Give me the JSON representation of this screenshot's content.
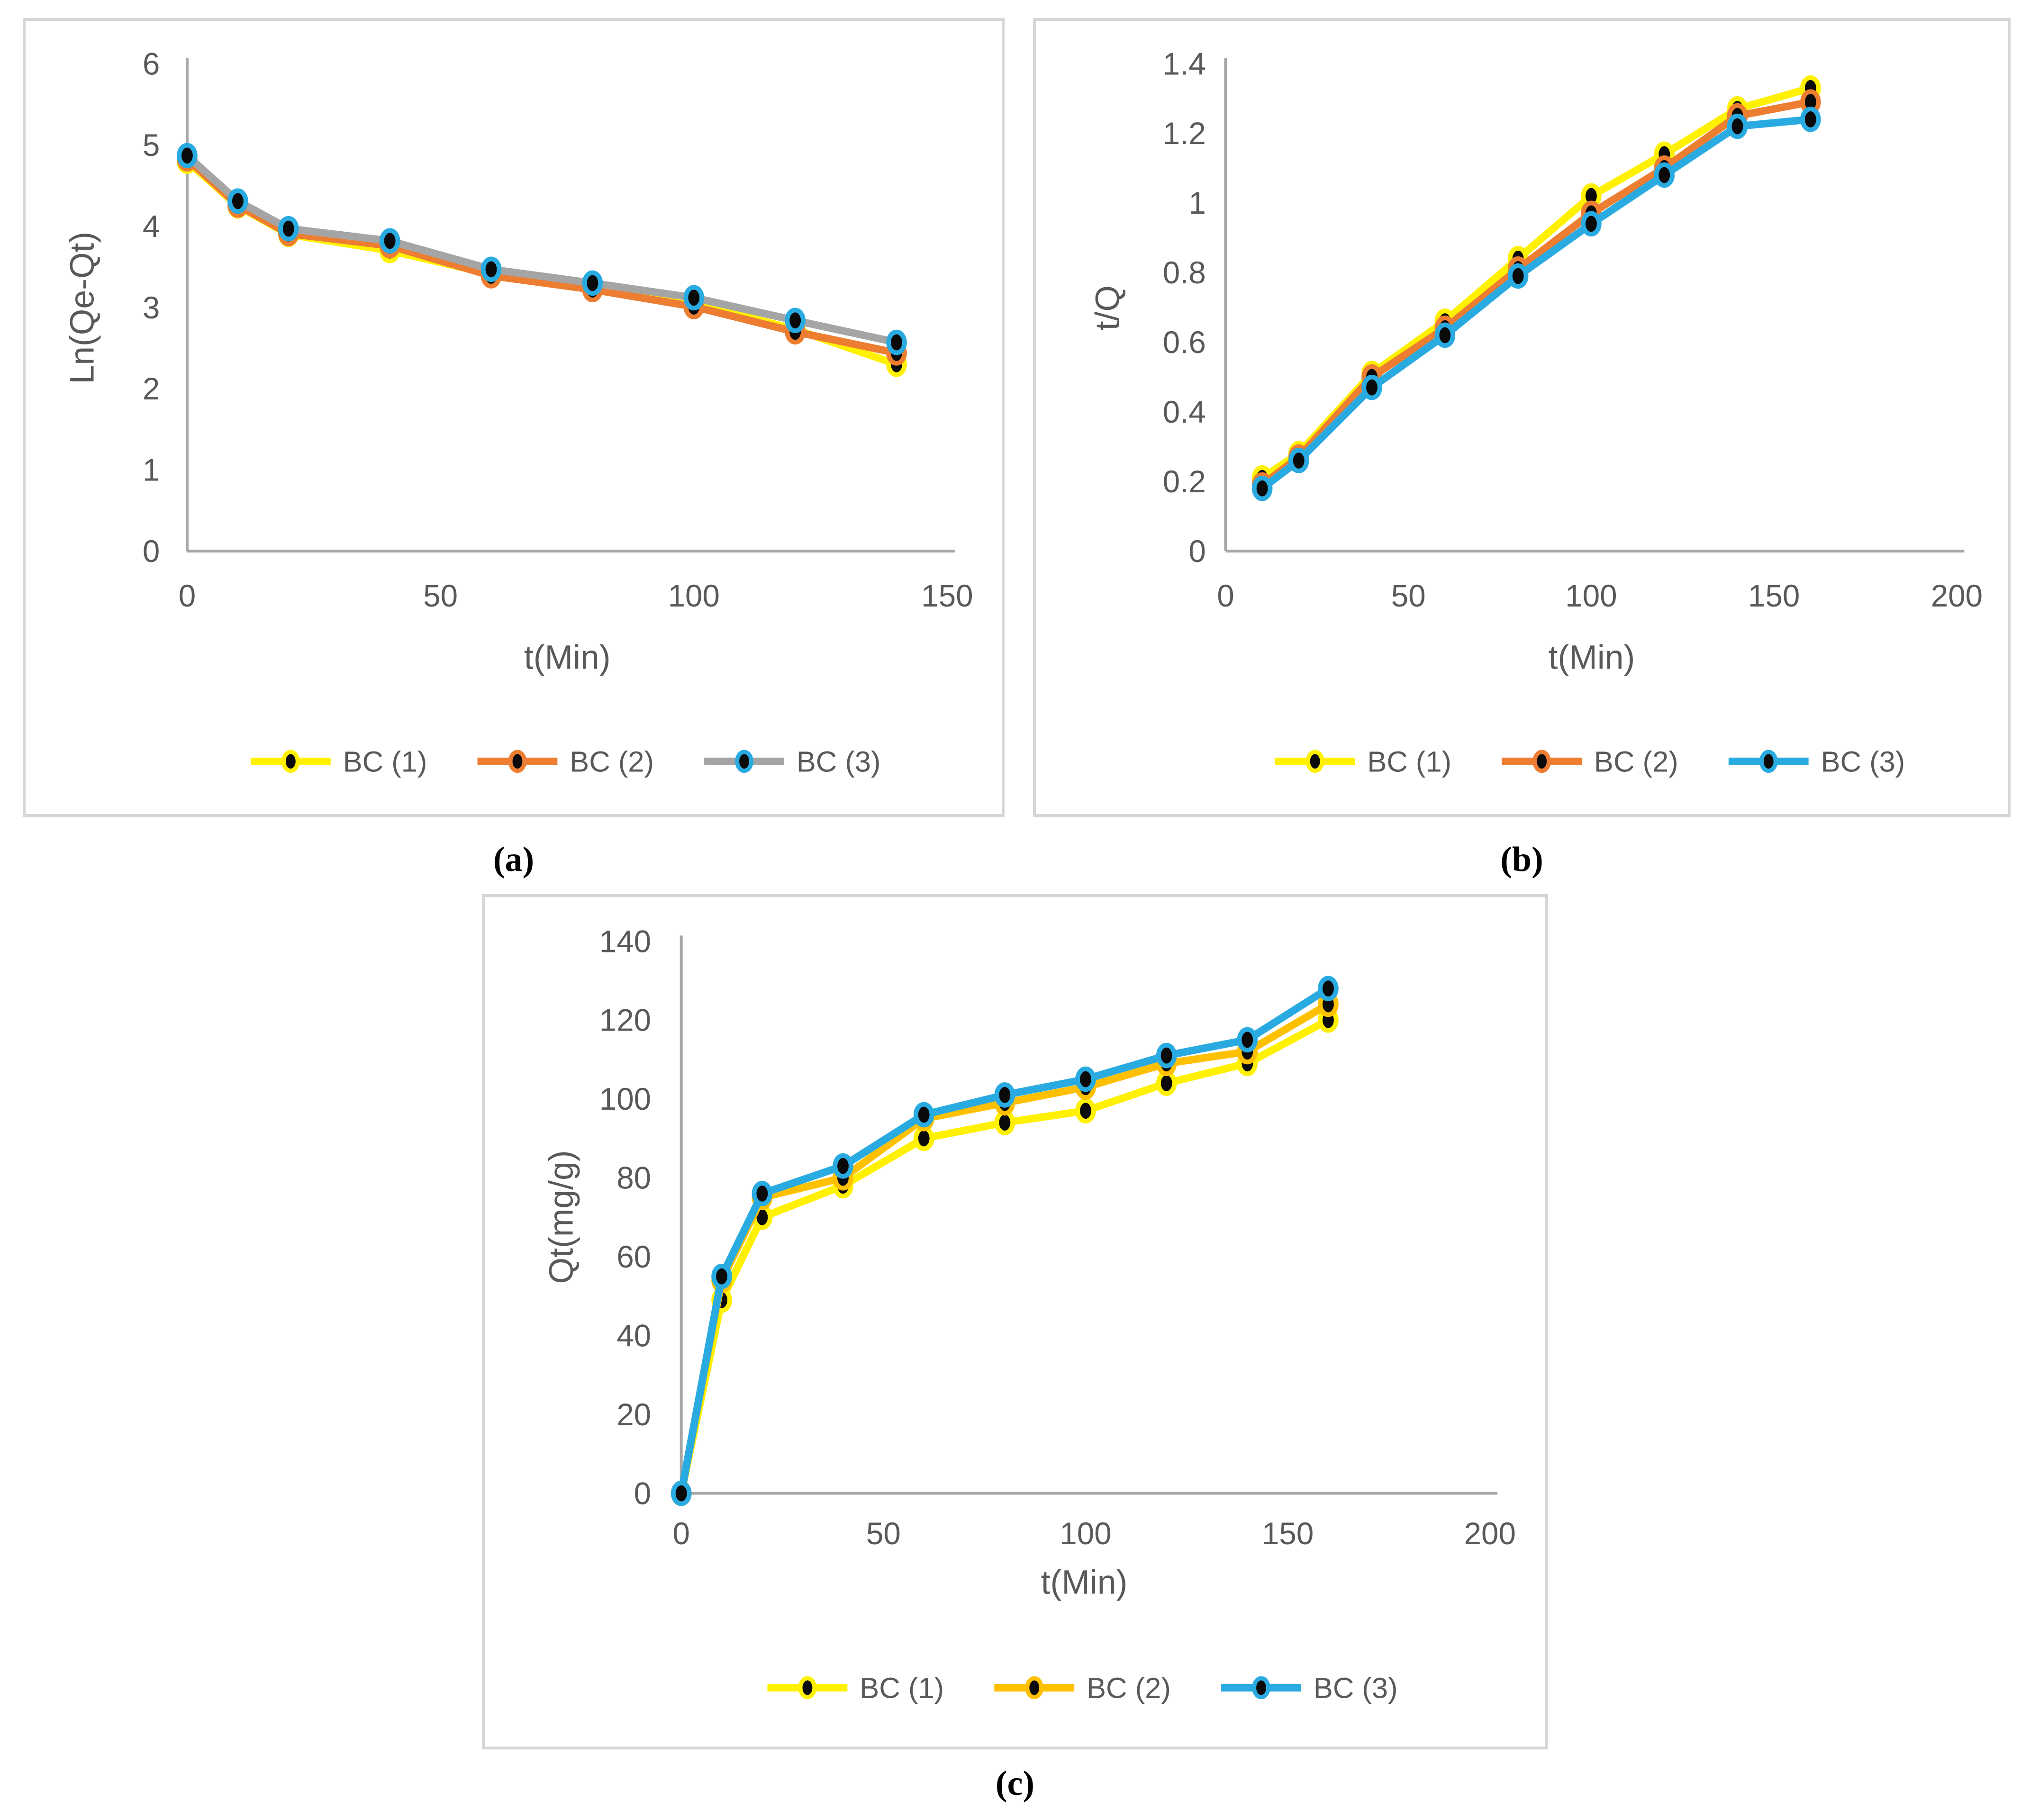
{
  "panel_labels": {
    "a": "(a)",
    "b": "(b)",
    "c": "(c)"
  },
  "colors": {
    "text": "#595959",
    "axis": "#a6a6a6",
    "panel_border": "#d6d6d6",
    "marker_fill": "#0a0a0a",
    "yellow": "#fff100",
    "orange": "#ed7d31",
    "gold": "#ffc000",
    "grey": "#a5a5a5",
    "blue": "#29abe2"
  },
  "chart_data": [
    {
      "id": "a",
      "type": "line",
      "xlabel": "t(Min)",
      "ylabel": "Ln(Qe-Qt)",
      "xlim": [
        0,
        150
      ],
      "ylim": [
        0,
        6
      ],
      "grid": false,
      "legend_position": "bottom",
      "xticks": [
        {
          "v": 0,
          "label": "0"
        },
        {
          "v": 50,
          "label": "50"
        },
        {
          "v": 100,
          "label": "100"
        },
        {
          "v": 150,
          "label": "150"
        }
      ],
      "yticks": [
        {
          "v": 0,
          "label": "0"
        },
        {
          "v": 1,
          "label": "1"
        },
        {
          "v": 2,
          "label": "2"
        },
        {
          "v": 3,
          "label": "3"
        },
        {
          "v": 4,
          "label": "4"
        },
        {
          "v": 5,
          "label": "5"
        },
        {
          "v": 6,
          "label": "6"
        }
      ],
      "x": [
        0,
        10,
        20,
        40,
        60,
        80,
        100,
        120,
        140
      ],
      "series": [
        {
          "name": "BC (1)",
          "line_color": "#fff100",
          "marker_ring": "#fff100",
          "values": [
            4.8,
            4.25,
            3.9,
            3.7,
            3.41,
            3.25,
            3.05,
            2.73,
            2.3
          ]
        },
        {
          "name": "BC (2)",
          "line_color": "#ed7d31",
          "marker_ring": "#ed7d31",
          "values": [
            4.83,
            4.26,
            3.91,
            3.76,
            3.39,
            3.22,
            3.01,
            2.7,
            2.44
          ]
        },
        {
          "name": "BC (3)",
          "line_color": "#a5a5a5",
          "marker_ring": "#29abe2",
          "values": [
            4.87,
            4.31,
            3.97,
            3.82,
            3.47,
            3.3,
            3.12,
            2.84,
            2.57
          ]
        }
      ]
    },
    {
      "id": "b",
      "type": "line",
      "xlabel": "t(Min)",
      "ylabel": "t/Q",
      "xlim": [
        0,
        200
      ],
      "ylim": [
        0,
        1.4
      ],
      "grid": false,
      "legend_position": "bottom",
      "xticks": [
        {
          "v": 0,
          "label": "0"
        },
        {
          "v": 50,
          "label": "50"
        },
        {
          "v": 100,
          "label": "100"
        },
        {
          "v": 150,
          "label": "150"
        },
        {
          "v": 200,
          "label": "200"
        }
      ],
      "yticks": [
        {
          "v": 0,
          "label": "0"
        },
        {
          "v": 0.2,
          "label": "0.2"
        },
        {
          "v": 0.4,
          "label": "0.4"
        },
        {
          "v": 0.6,
          "label": "0.6"
        },
        {
          "v": 0.8,
          "label": "0.8"
        },
        {
          "v": 1,
          "label": "1"
        },
        {
          "v": 1.2,
          "label": "1.2"
        },
        {
          "v": 1.4,
          "label": "1.4"
        }
      ],
      "x": [
        10,
        20,
        40,
        60,
        80,
        100,
        120,
        140,
        160
      ],
      "series": [
        {
          "name": "BC (1)",
          "line_color": "#fff100",
          "marker_ring": "#fff100",
          "values": [
            0.21,
            0.28,
            0.51,
            0.66,
            0.84,
            1.02,
            1.14,
            1.27,
            1.33
          ]
        },
        {
          "name": "BC (2)",
          "line_color": "#ed7d31",
          "marker_ring": "#ed7d31",
          "values": [
            0.19,
            0.27,
            0.5,
            0.64,
            0.81,
            0.97,
            1.1,
            1.25,
            1.29
          ]
        },
        {
          "name": "BC (3)",
          "line_color": "#29abe2",
          "marker_ring": "#29abe2",
          "values": [
            0.18,
            0.26,
            0.47,
            0.62,
            0.79,
            0.94,
            1.08,
            1.22,
            1.24
          ]
        }
      ]
    },
    {
      "id": "c",
      "type": "line",
      "xlabel": "t(Min)",
      "ylabel": "Qt(mg/g)",
      "xlim": [
        0,
        200
      ],
      "ylim": [
        0,
        140
      ],
      "grid": false,
      "legend_position": "bottom",
      "xticks": [
        {
          "v": 0,
          "label": "0"
        },
        {
          "v": 50,
          "label": "50"
        },
        {
          "v": 100,
          "label": "100"
        },
        {
          "v": 150,
          "label": "150"
        },
        {
          "v": 200,
          "label": "200"
        }
      ],
      "yticks": [
        {
          "v": 0,
          "label": "0"
        },
        {
          "v": 20,
          "label": "20"
        },
        {
          "v": 40,
          "label": "40"
        },
        {
          "v": 60,
          "label": "60"
        },
        {
          "v": 80,
          "label": "80"
        },
        {
          "v": 100,
          "label": "100"
        },
        {
          "v": 120,
          "label": "120"
        },
        {
          "v": 140,
          "label": "140"
        }
      ],
      "x": [
        0,
        10,
        20,
        40,
        60,
        80,
        100,
        120,
        140,
        160
      ],
      "series": [
        {
          "name": "BC (1)",
          "line_color": "#fff100",
          "marker_ring": "#fff100",
          "values": [
            0,
            49,
            70,
            78,
            90,
            94,
            97,
            104,
            109,
            120
          ]
        },
        {
          "name": "BC (2)",
          "line_color": "#ffc000",
          "marker_ring": "#ffc000",
          "values": [
            0,
            54,
            75,
            80,
            95,
            99,
            103,
            109,
            112,
            124
          ]
        },
        {
          "name": "BC (3)",
          "line_color": "#29abe2",
          "marker_ring": "#29abe2",
          "values": [
            0,
            55,
            76,
            83,
            96,
            101,
            105,
            111,
            115,
            128
          ]
        }
      ]
    }
  ]
}
